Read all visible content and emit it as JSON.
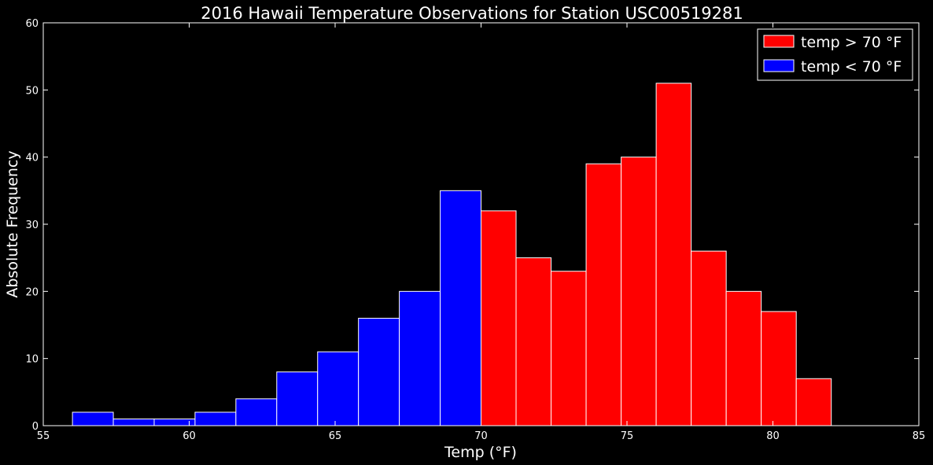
{
  "chart_data": {
    "type": "bar",
    "title": "2016 Hawaii Temperature Observations for Station USC00519281",
    "xlabel": "Temp (°F)",
    "ylabel": "Absolute Frequency",
    "xlim": [
      55,
      85
    ],
    "ylim": [
      0,
      60
    ],
    "xticks": [
      "55",
      "60",
      "65",
      "70",
      "75",
      "80",
      "85"
    ],
    "yticks": [
      "0",
      "10",
      "20",
      "30",
      "40",
      "50",
      "60"
    ],
    "grid": false,
    "legend_position": "top-right",
    "series": [
      {
        "name": "temp > 70 °F",
        "color": "#ff0000",
        "bin_edges": [
          70.0,
          71.2,
          72.4,
          73.6,
          74.8,
          76.0,
          77.2,
          78.4,
          79.6,
          80.8,
          82.0
        ],
        "values": [
          32,
          25,
          23,
          39,
          40,
          51,
          26,
          20,
          17,
          7
        ]
      },
      {
        "name": "temp < 70 °F",
        "color": "#0000ff",
        "bin_edges": [
          56.0,
          57.4,
          58.8,
          60.2,
          61.6,
          63.0,
          64.4,
          65.8,
          67.2,
          68.6,
          70.0
        ],
        "values": [
          2,
          1,
          1,
          2,
          4,
          8,
          11,
          16,
          20,
          35
        ]
      }
    ]
  }
}
